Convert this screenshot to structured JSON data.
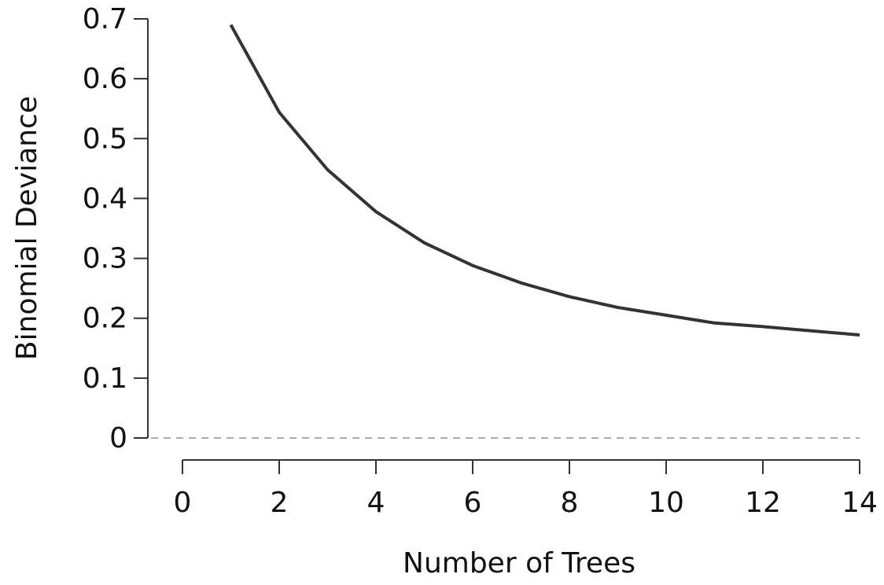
{
  "chart_data": {
    "type": "line",
    "x_label": "Number of Trees",
    "y_label": "Binomial Deviance",
    "x": [
      1,
      2,
      3,
      4,
      5,
      6,
      7,
      8,
      9,
      10,
      11,
      12,
      13,
      14
    ],
    "series": [
      {
        "color": "#333333",
        "values": [
          0.69,
          0.544,
          0.448,
          0.378,
          0.326,
          0.288,
          0.259,
          0.236,
          0.218,
          0.205,
          0.192,
          0.186,
          0.179,
          0.172
        ]
      }
    ],
    "xlim": [
      0,
      14
    ],
    "xticks": [
      0,
      2,
      4,
      6,
      8,
      10,
      12,
      14
    ],
    "ylim": [
      0,
      0.7
    ],
    "yticks": [
      0,
      0.1,
      0.2,
      0.3,
      0.4,
      0.5,
      0.6,
      0.7
    ],
    "reference_line": 0
  }
}
